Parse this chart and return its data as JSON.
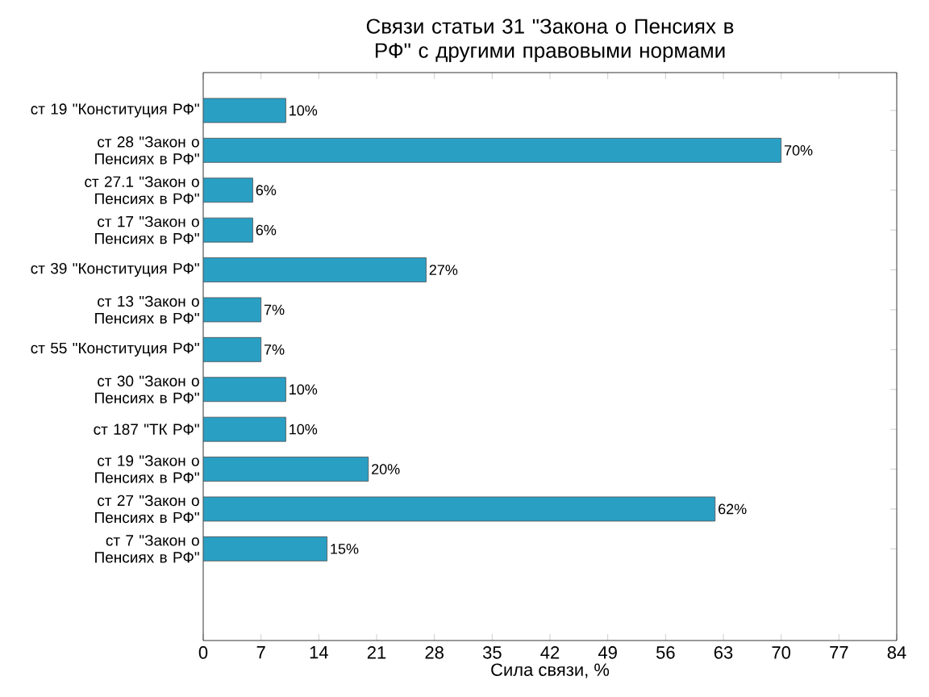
{
  "chart_data": {
    "type": "bar",
    "orientation": "horizontal",
    "title": "Связи статьи 31 \"Закона о Пенсиях в РФ\" с другими правовыми нормами",
    "xlabel": "Сила связи, %",
    "categories": [
      "ст 19 \"Конституция РФ\"",
      "ст 28 \"Закон о Пенсиях в РФ\"",
      "ст 27.1 \"Закон о Пенсиях в РФ\"",
      "ст 17 \"Закон о Пенсиях в РФ\"",
      "ст 39 \"Конституция РФ\"",
      "ст 13 \"Закон о Пенсиях в РФ\"",
      "ст 55 \"Конституция РФ\"",
      "ст 30 \"Закон о Пенсиях в РФ\"",
      "ст 187 \"ТК РФ\"",
      "ст 19 \"Закон о Пенсиях в РФ\"",
      "ст 27 \"Закон о Пенсиях в РФ\"",
      "ст 7 \"Закон о Пенсиях в РФ\""
    ],
    "values": [
      10,
      70,
      6,
      6,
      27,
      7,
      7,
      10,
      10,
      20,
      62,
      15
    ],
    "value_labels": [
      "10%",
      "70%",
      "6%",
      "6%",
      "27%",
      "7%",
      "7%",
      "10%",
      "10%",
      "20%",
      "62%",
      "15%"
    ],
    "color": "#2a9fc4",
    "xlim": [
      0,
      84
    ],
    "xticks": [
      0,
      7,
      14,
      21,
      28,
      35,
      42,
      49,
      56,
      63,
      70,
      77,
      84
    ],
    "grid": false
  }
}
